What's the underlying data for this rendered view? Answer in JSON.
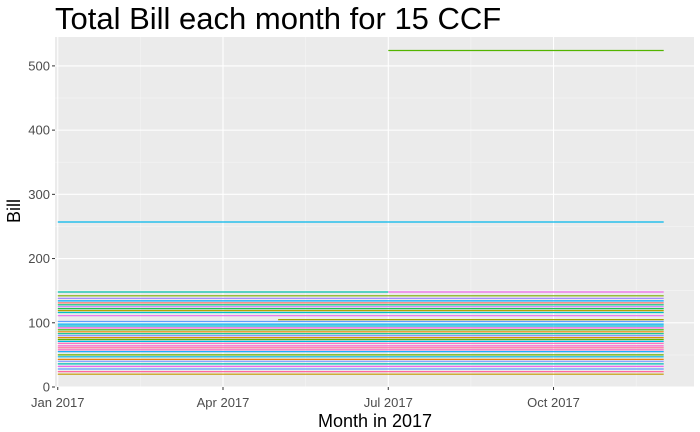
{
  "chart_data": {
    "type": "line",
    "title": "Total Bill each month for 15 CCF",
    "xlabel": "Month in 2017",
    "ylabel": "Bill",
    "x_ticks": [
      "Jan 2017",
      "Apr 2017",
      "Jul 2017",
      "Oct 2017"
    ],
    "x_tick_months": [
      0,
      3,
      6,
      9
    ],
    "y_ticks": [
      0,
      100,
      200,
      300,
      400,
      500
    ],
    "ylim": [
      0,
      545
    ],
    "xlim_months": [
      -0.05,
      11.55
    ],
    "grid": true,
    "legend": "none",
    "series": [
      {
        "color": "#53b400",
        "x": [
          "2017-07-01",
          "2017-12-01"
        ],
        "y": [
          524,
          524
        ]
      },
      {
        "color": "#00b6eb",
        "x": [
          "2017-01-01",
          "2017-12-01"
        ],
        "y": [
          257,
          257
        ]
      },
      {
        "color": "#00c1a9",
        "x": [
          "2017-01-01",
          "2017-07-01"
        ],
        "y": [
          148,
          148
        ]
      },
      {
        "color": "#ef67eb",
        "x": [
          "2017-07-01",
          "2017-12-01"
        ],
        "y": [
          148,
          148
        ]
      },
      {
        "color": "#7cae00",
        "x": [
          "2017-01-01",
          "2017-12-01"
        ],
        "y": [
          142,
          142
        ]
      },
      {
        "color": "#a58aff",
        "x": [
          "2017-01-01",
          "2017-12-01"
        ],
        "y": [
          138,
          138
        ]
      },
      {
        "color": "#00a9ff",
        "x": [
          "2017-01-01",
          "2017-12-01"
        ],
        "y": [
          134,
          134
        ]
      },
      {
        "color": "#f8766d",
        "x": [
          "2017-01-01",
          "2017-12-01"
        ],
        "y": [
          131,
          131
        ]
      },
      {
        "color": "#00bf7d",
        "x": [
          "2017-01-01",
          "2017-12-01"
        ],
        "y": [
          128,
          128
        ]
      },
      {
        "color": "#c77cff",
        "x": [
          "2017-01-01",
          "2017-12-01"
        ],
        "y": [
          125,
          125
        ]
      },
      {
        "color": "#00ba38",
        "x": [
          "2017-01-01",
          "2017-12-01"
        ],
        "y": [
          122,
          122
        ]
      },
      {
        "color": "#b79f00",
        "x": [
          "2017-01-01",
          "2017-12-01"
        ],
        "y": [
          119,
          119
        ]
      },
      {
        "color": "#00bfc4",
        "x": [
          "2017-01-01",
          "2017-12-01"
        ],
        "y": [
          116,
          116
        ]
      },
      {
        "color": "#e76bf3",
        "x": [
          "2017-01-01",
          "2017-12-01"
        ],
        "y": [
          111,
          111
        ]
      },
      {
        "color": "#a3a500",
        "x": [
          "2017-05-01",
          "2017-12-01"
        ],
        "y": [
          105,
          105
        ]
      },
      {
        "color": "#619cff",
        "x": [
          "2017-01-01",
          "2017-12-01"
        ],
        "y": [
          102,
          102
        ]
      },
      {
        "color": "#00b0f6",
        "x": [
          "2017-01-01",
          "2017-12-01"
        ],
        "y": [
          98,
          98
        ]
      },
      {
        "color": "#00bcd8",
        "x": [
          "2017-01-01",
          "2017-12-01"
        ],
        "y": [
          95,
          95
        ]
      },
      {
        "color": "#f763e0",
        "x": [
          "2017-01-01",
          "2017-12-01"
        ],
        "y": [
          92,
          92
        ]
      },
      {
        "color": "#39b600",
        "x": [
          "2017-01-01",
          "2017-12-01"
        ],
        "y": [
          89,
          89
        ]
      },
      {
        "color": "#e58700",
        "x": [
          "2017-01-01",
          "2017-12-01"
        ],
        "y": [
          86,
          86
        ]
      },
      {
        "color": "#00c08b",
        "x": [
          "2017-01-01",
          "2017-12-01"
        ],
        "y": [
          83,
          83
        ]
      },
      {
        "color": "#9590ff",
        "x": [
          "2017-01-01",
          "2017-12-01"
        ],
        "y": [
          80,
          80
        ]
      },
      {
        "color": "#d89000",
        "x": [
          "2017-01-01",
          "2017-12-01"
        ],
        "y": [
          77,
          77
        ]
      },
      {
        "color": "#5eb300",
        "x": [
          "2017-01-01",
          "2017-12-01"
        ],
        "y": [
          74,
          74
        ]
      },
      {
        "color": "#00bbdb",
        "x": [
          "2017-01-01",
          "2017-12-01"
        ],
        "y": [
          71,
          71
        ]
      },
      {
        "color": "#ff62bc",
        "x": [
          "2017-01-01",
          "2017-12-01"
        ],
        "y": [
          68,
          68
        ]
      },
      {
        "color": "#fd61d1",
        "x": [
          "2017-01-01",
          "2017-12-01"
        ],
        "y": [
          64,
          64
        ]
      },
      {
        "color": "#ff6c91",
        "x": [
          "2017-01-01",
          "2017-12-01"
        ],
        "y": [
          61,
          61
        ]
      },
      {
        "color": "#ff61c3",
        "x": [
          "2017-01-01",
          "2017-12-01"
        ],
        "y": [
          58,
          58
        ]
      },
      {
        "color": "#00a5ff",
        "x": [
          "2017-01-01",
          "2017-12-01"
        ],
        "y": [
          55,
          55
        ]
      },
      {
        "color": "#6bb100",
        "x": [
          "2017-01-01",
          "2017-12-01"
        ],
        "y": [
          50,
          50
        ]
      },
      {
        "color": "#00b8e7",
        "x": [
          "2017-01-01",
          "2017-12-01"
        ],
        "y": [
          47,
          47
        ]
      },
      {
        "color": "#e68613",
        "x": [
          "2017-01-01",
          "2017-12-01"
        ],
        "y": [
          43,
          43
        ]
      },
      {
        "color": "#8494ff",
        "x": [
          "2017-01-01",
          "2017-12-01"
        ],
        "y": [
          40,
          40
        ]
      },
      {
        "color": "#00c0b8",
        "x": [
          "2017-01-01",
          "2017-12-01"
        ],
        "y": [
          36,
          36
        ]
      },
      {
        "color": "#ed68ed",
        "x": [
          "2017-01-01",
          "2017-12-01"
        ],
        "y": [
          32,
          32
        ]
      },
      {
        "color": "#619cff",
        "x": [
          "2017-01-01",
          "2017-12-01"
        ],
        "y": [
          28,
          28
        ]
      },
      {
        "color": "#ff68a1",
        "x": [
          "2017-01-01",
          "2017-12-01"
        ],
        "y": [
          24,
          24
        ]
      },
      {
        "color": "#c59900",
        "x": [
          "2017-01-01",
          "2017-12-01"
        ],
        "y": [
          20,
          20
        ]
      }
    ]
  }
}
